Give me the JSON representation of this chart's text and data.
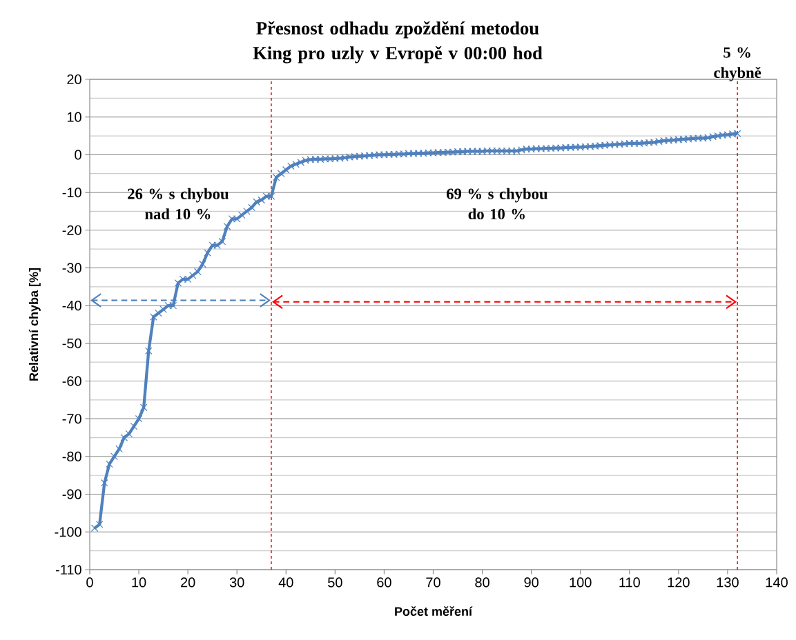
{
  "chart_data": {
    "type": "line",
    "title": "Přesnost odhadu zpoždění metodou King pro uzly v Evropě v 00:00 hod",
    "xlabel": "Počet měření",
    "ylabel": "Relativní chyba [%]",
    "annotations": [
      "26 % s chybou nad 10 %",
      "69 % s chybou do 10 %",
      "5 % chybně"
    ],
    "series": [
      {
        "color": "#4f81bd",
        "x": [
          1,
          2,
          3,
          4,
          5,
          6,
          7,
          8,
          9,
          10,
          11,
          12,
          13,
          14,
          15,
          16,
          17,
          18,
          19,
          20,
          21,
          22,
          23,
          24,
          25,
          26,
          27,
          28,
          29,
          30,
          31,
          32,
          33,
          34,
          35,
          36,
          37,
          38,
          39,
          40,
          41,
          42,
          43,
          44,
          45,
          46,
          47,
          48,
          49,
          50,
          51,
          52,
          53,
          54,
          55,
          56,
          57,
          58,
          59,
          60,
          61,
          62,
          63,
          64,
          65,
          66,
          67,
          68,
          69,
          70,
          71,
          72,
          73,
          74,
          75,
          76,
          77,
          78,
          79,
          80,
          81,
          82,
          83,
          84,
          85,
          86,
          87,
          88,
          89,
          90,
          91,
          92,
          93,
          94,
          95,
          96,
          97,
          98,
          99,
          100,
          101,
          102,
          103,
          104,
          105,
          106,
          107,
          108,
          109,
          110,
          111,
          112,
          113,
          114,
          115,
          116,
          117,
          118,
          119,
          120,
          121,
          122,
          123,
          124,
          125,
          126,
          127,
          128,
          129,
          130,
          131,
          132
        ],
        "values": [
          -99,
          -98,
          -87,
          -82,
          -80,
          -78,
          -75,
          -74,
          -72,
          -70,
          -67,
          -52,
          -43,
          -42,
          -41,
          -40,
          -40,
          -34,
          -33,
          -33,
          -32,
          -31,
          -29,
          -26,
          -24,
          -24,
          -23,
          -19,
          -17,
          -17,
          -16,
          -15,
          -14,
          -12.5,
          -12,
          -11,
          -11,
          -6,
          -5,
          -4,
          -3,
          -2.5,
          -2,
          -1.5,
          -1.3,
          -1.2,
          -1.2,
          -1.1,
          -1.1,
          -1,
          -0.9,
          -0.8,
          -0.6,
          -0.5,
          -0.4,
          -0.3,
          -0.2,
          -0.1,
          0,
          0,
          0.1,
          0.1,
          0.2,
          0.2,
          0.3,
          0.3,
          0.4,
          0.4,
          0.5,
          0.5,
          0.6,
          0.6,
          0.7,
          0.7,
          0.8,
          0.8,
          0.9,
          0.9,
          0.9,
          0.9,
          1,
          1,
          1,
          1,
          1,
          1,
          1,
          1.3,
          1.5,
          1.5,
          1.6,
          1.6,
          1.7,
          1.7,
          1.8,
          1.8,
          1.9,
          1.9,
          2,
          2,
          2.1,
          2.2,
          2.3,
          2.4,
          2.5,
          2.6,
          2.7,
          2.8,
          2.9,
          3,
          3,
          3,
          3.1,
          3.2,
          3.3,
          3.5,
          3.7,
          3.8,
          3.9,
          4,
          4.1,
          4.2,
          4.3,
          4.4,
          4.4,
          4.5,
          4.8,
          5,
          5.2,
          5.3,
          5.5,
          5.6
        ]
      }
    ],
    "xlim": [
      0,
      140
    ],
    "ylim": [
      -110,
      20
    ],
    "xticks": [
      0,
      10,
      20,
      30,
      40,
      50,
      60,
      70,
      80,
      90,
      100,
      110,
      120,
      130,
      140
    ],
    "yticks": [
      -110,
      -100,
      -90,
      -80,
      -70,
      -60,
      -50,
      -40,
      -30,
      -20,
      -10,
      0,
      10,
      20
    ],
    "grid": "y",
    "marker": "cross",
    "line_style": "solid",
    "ref_lines": [
      {
        "axis": "x",
        "value": 37,
        "color": "#ff0000",
        "line_style": "dashed"
      },
      {
        "axis": "x",
        "value": 132,
        "color": "#ff0000",
        "line_style": "dashed"
      }
    ]
  }
}
